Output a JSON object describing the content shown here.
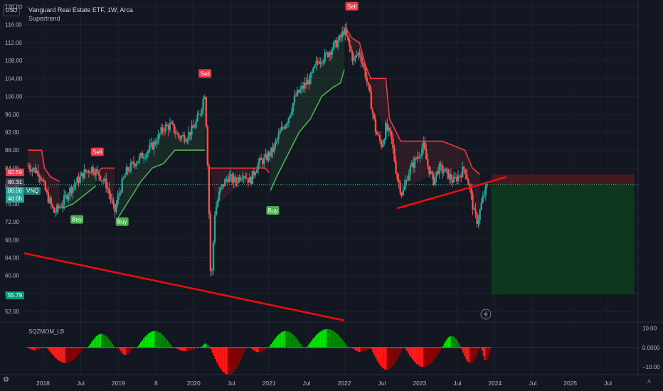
{
  "header": {
    "currency_button": "USD",
    "title": "Vanguard Real Estate ETF, 1W, Arca",
    "indicator": "Supertrend"
  },
  "price_tags": {
    "supertrend_value": "82.59",
    "last_close": "80.31",
    "vnq_price": "80.06",
    "vnq_symbol": "VNQ",
    "countdown": "4d 0h",
    "target_price": "55.79"
  },
  "oscillator": {
    "name": "SQZMOM_LB",
    "ticks": [
      "10.00",
      "0.0000",
      "−10.00"
    ]
  },
  "footer": {
    "auto_label": "A"
  },
  "colors": {
    "background": "#131722",
    "up": "#26a69a",
    "down": "#ef5350",
    "supertrend_up": "#4caf50",
    "supertrend_down": "#f23645",
    "trendline": "#f20d0d",
    "target_zone": "#0d3b1f",
    "stop_zone": "#4a1b22",
    "mom_bright_green": "#00e600",
    "mom_dark_green": "#008a00",
    "mom_bright_red": "#ff1a1a",
    "mom_dark_red": "#8b0000"
  },
  "chart_data": {
    "type": "candlestick",
    "title": "Vanguard Real Estate ETF, 1W, Arca",
    "price_axis_ticks": [
      "52.00",
      "56.00",
      "60.00",
      "64.00",
      "68.00",
      "72.00",
      "76.00",
      "80.00",
      "84.00",
      "88.00",
      "92.00",
      "96.00",
      "100.00",
      "104.00",
      "108.00",
      "112.00",
      "116.00",
      "120.00"
    ],
    "time_axis_ticks": [
      "2018",
      "Jul",
      "2019",
      "8",
      "2020",
      "Jul",
      "2021",
      "Jul",
      "2022",
      "Jul",
      "2023",
      "Jul",
      "2024",
      "Jul",
      "2025",
      "Jul"
    ],
    "ylim": [
      49.8,
      121.5
    ],
    "xlim": [
      2017.75,
      2025.9
    ],
    "close_path": [
      [
        2017.8,
        84.5
      ],
      [
        2017.95,
        83
      ],
      [
        2018.05,
        78
      ],
      [
        2018.15,
        74
      ],
      [
        2018.25,
        76
      ],
      [
        2018.35,
        79
      ],
      [
        2018.45,
        81
      ],
      [
        2018.55,
        83
      ],
      [
        2018.65,
        84
      ],
      [
        2018.75,
        82.5
      ],
      [
        2018.85,
        80
      ],
      [
        2018.95,
        74
      ],
      [
        2019.0,
        78
      ],
      [
        2019.1,
        83
      ],
      [
        2019.2,
        85
      ],
      [
        2019.3,
        86.5
      ],
      [
        2019.4,
        88
      ],
      [
        2019.5,
        90
      ],
      [
        2019.6,
        93
      ],
      [
        2019.7,
        93.5
      ],
      [
        2019.8,
        91
      ],
      [
        2019.9,
        91
      ],
      [
        2020.0,
        93
      ],
      [
        2020.08,
        96
      ],
      [
        2020.15,
        101
      ],
      [
        2020.19,
        83
      ],
      [
        2020.21,
        70
      ],
      [
        2020.23,
        56.5
      ],
      [
        2020.28,
        74
      ],
      [
        2020.35,
        79
      ],
      [
        2020.45,
        82
      ],
      [
        2020.55,
        81
      ],
      [
        2020.65,
        83
      ],
      [
        2020.75,
        81
      ],
      [
        2020.85,
        85
      ],
      [
        2020.95,
        86
      ],
      [
        2021.05,
        88
      ],
      [
        2021.15,
        92
      ],
      [
        2021.25,
        95
      ],
      [
        2021.35,
        100
      ],
      [
        2021.45,
        102
      ],
      [
        2021.55,
        104
      ],
      [
        2021.65,
        108
      ],
      [
        2021.75,
        109
      ],
      [
        2021.85,
        111
      ],
      [
        2021.95,
        113
      ],
      [
        2022.0,
        115
      ],
      [
        2022.05,
        112
      ],
      [
        2022.12,
        108
      ],
      [
        2022.2,
        110
      ],
      [
        2022.28,
        105
      ],
      [
        2022.35,
        99
      ],
      [
        2022.42,
        92
      ],
      [
        2022.5,
        89
      ],
      [
        2022.55,
        93
      ],
      [
        2022.62,
        91
      ],
      [
        2022.7,
        82
      ],
      [
        2022.77,
        78
      ],
      [
        2022.85,
        83
      ],
      [
        2022.95,
        86
      ],
      [
        2023.05,
        89
      ],
      [
        2023.1,
        85
      ],
      [
        2023.18,
        81
      ],
      [
        2023.25,
        84
      ],
      [
        2023.35,
        83
      ],
      [
        2023.45,
        81
      ],
      [
        2023.55,
        83
      ],
      [
        2023.6,
        84
      ],
      [
        2023.67,
        79
      ],
      [
        2023.72,
        74
      ],
      [
        2023.77,
        72
      ],
      [
        2023.82,
        76
      ],
      [
        2023.87,
        79
      ],
      [
        2023.91,
        80.31
      ]
    ],
    "supertrend": {
      "downtrend_segments": [
        [
          [
            2017.8,
            88
          ],
          [
            2017.98,
            88
          ],
          [
            2018.02,
            84
          ],
          [
            2018.1,
            82
          ],
          [
            2018.22,
            81
          ]
        ],
        [
          [
            2018.7,
            82.5
          ],
          [
            2018.78,
            84
          ],
          [
            2018.95,
            84
          ]
        ],
        [
          [
            2020.18,
            84
          ],
          [
            2020.3,
            84
          ],
          [
            2020.95,
            84
          ],
          [
            2021.0,
            83
          ]
        ],
        [
          [
            2022.03,
            115
          ],
          [
            2022.1,
            113
          ],
          [
            2022.2,
            112
          ],
          [
            2022.28,
            107
          ],
          [
            2022.35,
            104
          ],
          [
            2022.55,
            104
          ],
          [
            2022.6,
            95
          ],
          [
            2022.75,
            90
          ],
          [
            2023.3,
            90
          ],
          [
            2023.6,
            88
          ],
          [
            2023.7,
            84
          ],
          [
            2023.8,
            82.59
          ]
        ]
      ],
      "uptrend_segments": [
        [
          [
            2018.25,
            75
          ],
          [
            2018.4,
            76
          ],
          [
            2018.55,
            78
          ],
          [
            2018.7,
            80
          ]
        ],
        [
          [
            2019.0,
            73
          ],
          [
            2019.15,
            77
          ],
          [
            2019.3,
            81
          ],
          [
            2019.45,
            84
          ],
          [
            2019.6,
            85
          ],
          [
            2019.75,
            88
          ],
          [
            2019.9,
            88
          ],
          [
            2020.05,
            88
          ],
          [
            2020.15,
            88
          ]
        ],
        [
          [
            2021.02,
            79
          ],
          [
            2021.1,
            82
          ],
          [
            2021.25,
            87
          ],
          [
            2021.4,
            92
          ],
          [
            2021.55,
            95
          ],
          [
            2021.7,
            100
          ],
          [
            2021.85,
            102
          ],
          [
            2021.95,
            103
          ],
          [
            2022.0,
            106
          ]
        ]
      ]
    },
    "signals": [
      {
        "label": "Sell",
        "x": 2018.72,
        "price": 86.5
      },
      {
        "label": "Buy",
        "x": 2018.45,
        "price": 73.5
      },
      {
        "label": "Buy",
        "x": 2019.05,
        "price": 73.0
      },
      {
        "label": "Sell",
        "x": 2020.15,
        "price": 104
      },
      {
        "label": "Buy",
        "x": 2021.05,
        "price": 75.5
      },
      {
        "label": "Sell",
        "x": 2022.1,
        "price": 119
      }
    ],
    "trendlines": [
      {
        "from": [
          2017.75,
          65.0
        ],
        "to": [
          2022.0,
          50.0
        ]
      },
      {
        "from": [
          2022.7,
          75.0
        ],
        "to": [
          2024.15,
          82.0
        ]
      }
    ],
    "position": {
      "entry": 80.31,
      "stop": 82.59,
      "target": 55.79,
      "start_x": 2023.95,
      "end_x": 2025.85
    },
    "squeeze_momentum": {
      "ylim": [
        -14,
        12
      ],
      "segments": [
        {
          "from": 2017.8,
          "to": 2018.0,
          "peak": -1.5
        },
        {
          "from": 2018.05,
          "to": 2018.55,
          "peak": -8
        },
        {
          "from": 2018.6,
          "to": 2018.95,
          "peak": 7
        },
        {
          "from": 2019.0,
          "to": 2019.2,
          "peak": -4
        },
        {
          "from": 2019.25,
          "to": 2019.72,
          "peak": 8.5
        },
        {
          "from": 2019.75,
          "to": 2020.05,
          "peak": -2
        },
        {
          "from": 2020.1,
          "to": 2020.22,
          "peak": 2
        },
        {
          "from": 2020.22,
          "to": 2020.7,
          "peak": -14
        },
        {
          "from": 2020.75,
          "to": 2020.98,
          "peak": -2.5
        },
        {
          "from": 2021.0,
          "to": 2021.45,
          "peak": 8.5
        },
        {
          "from": 2021.5,
          "to": 2022.05,
          "peak": 9.5
        },
        {
          "from": 2022.1,
          "to": 2022.35,
          "peak": -2.5
        },
        {
          "from": 2022.35,
          "to": 2022.78,
          "peak": -11.5
        },
        {
          "from": 2022.8,
          "to": 2023.3,
          "peak": -10
        },
        {
          "from": 2023.3,
          "to": 2023.55,
          "peak": 6
        },
        {
          "from": 2023.55,
          "to": 2023.8,
          "peak": -8
        },
        {
          "from": 2023.82,
          "to": 2023.95,
          "peak": -7
        }
      ]
    }
  }
}
